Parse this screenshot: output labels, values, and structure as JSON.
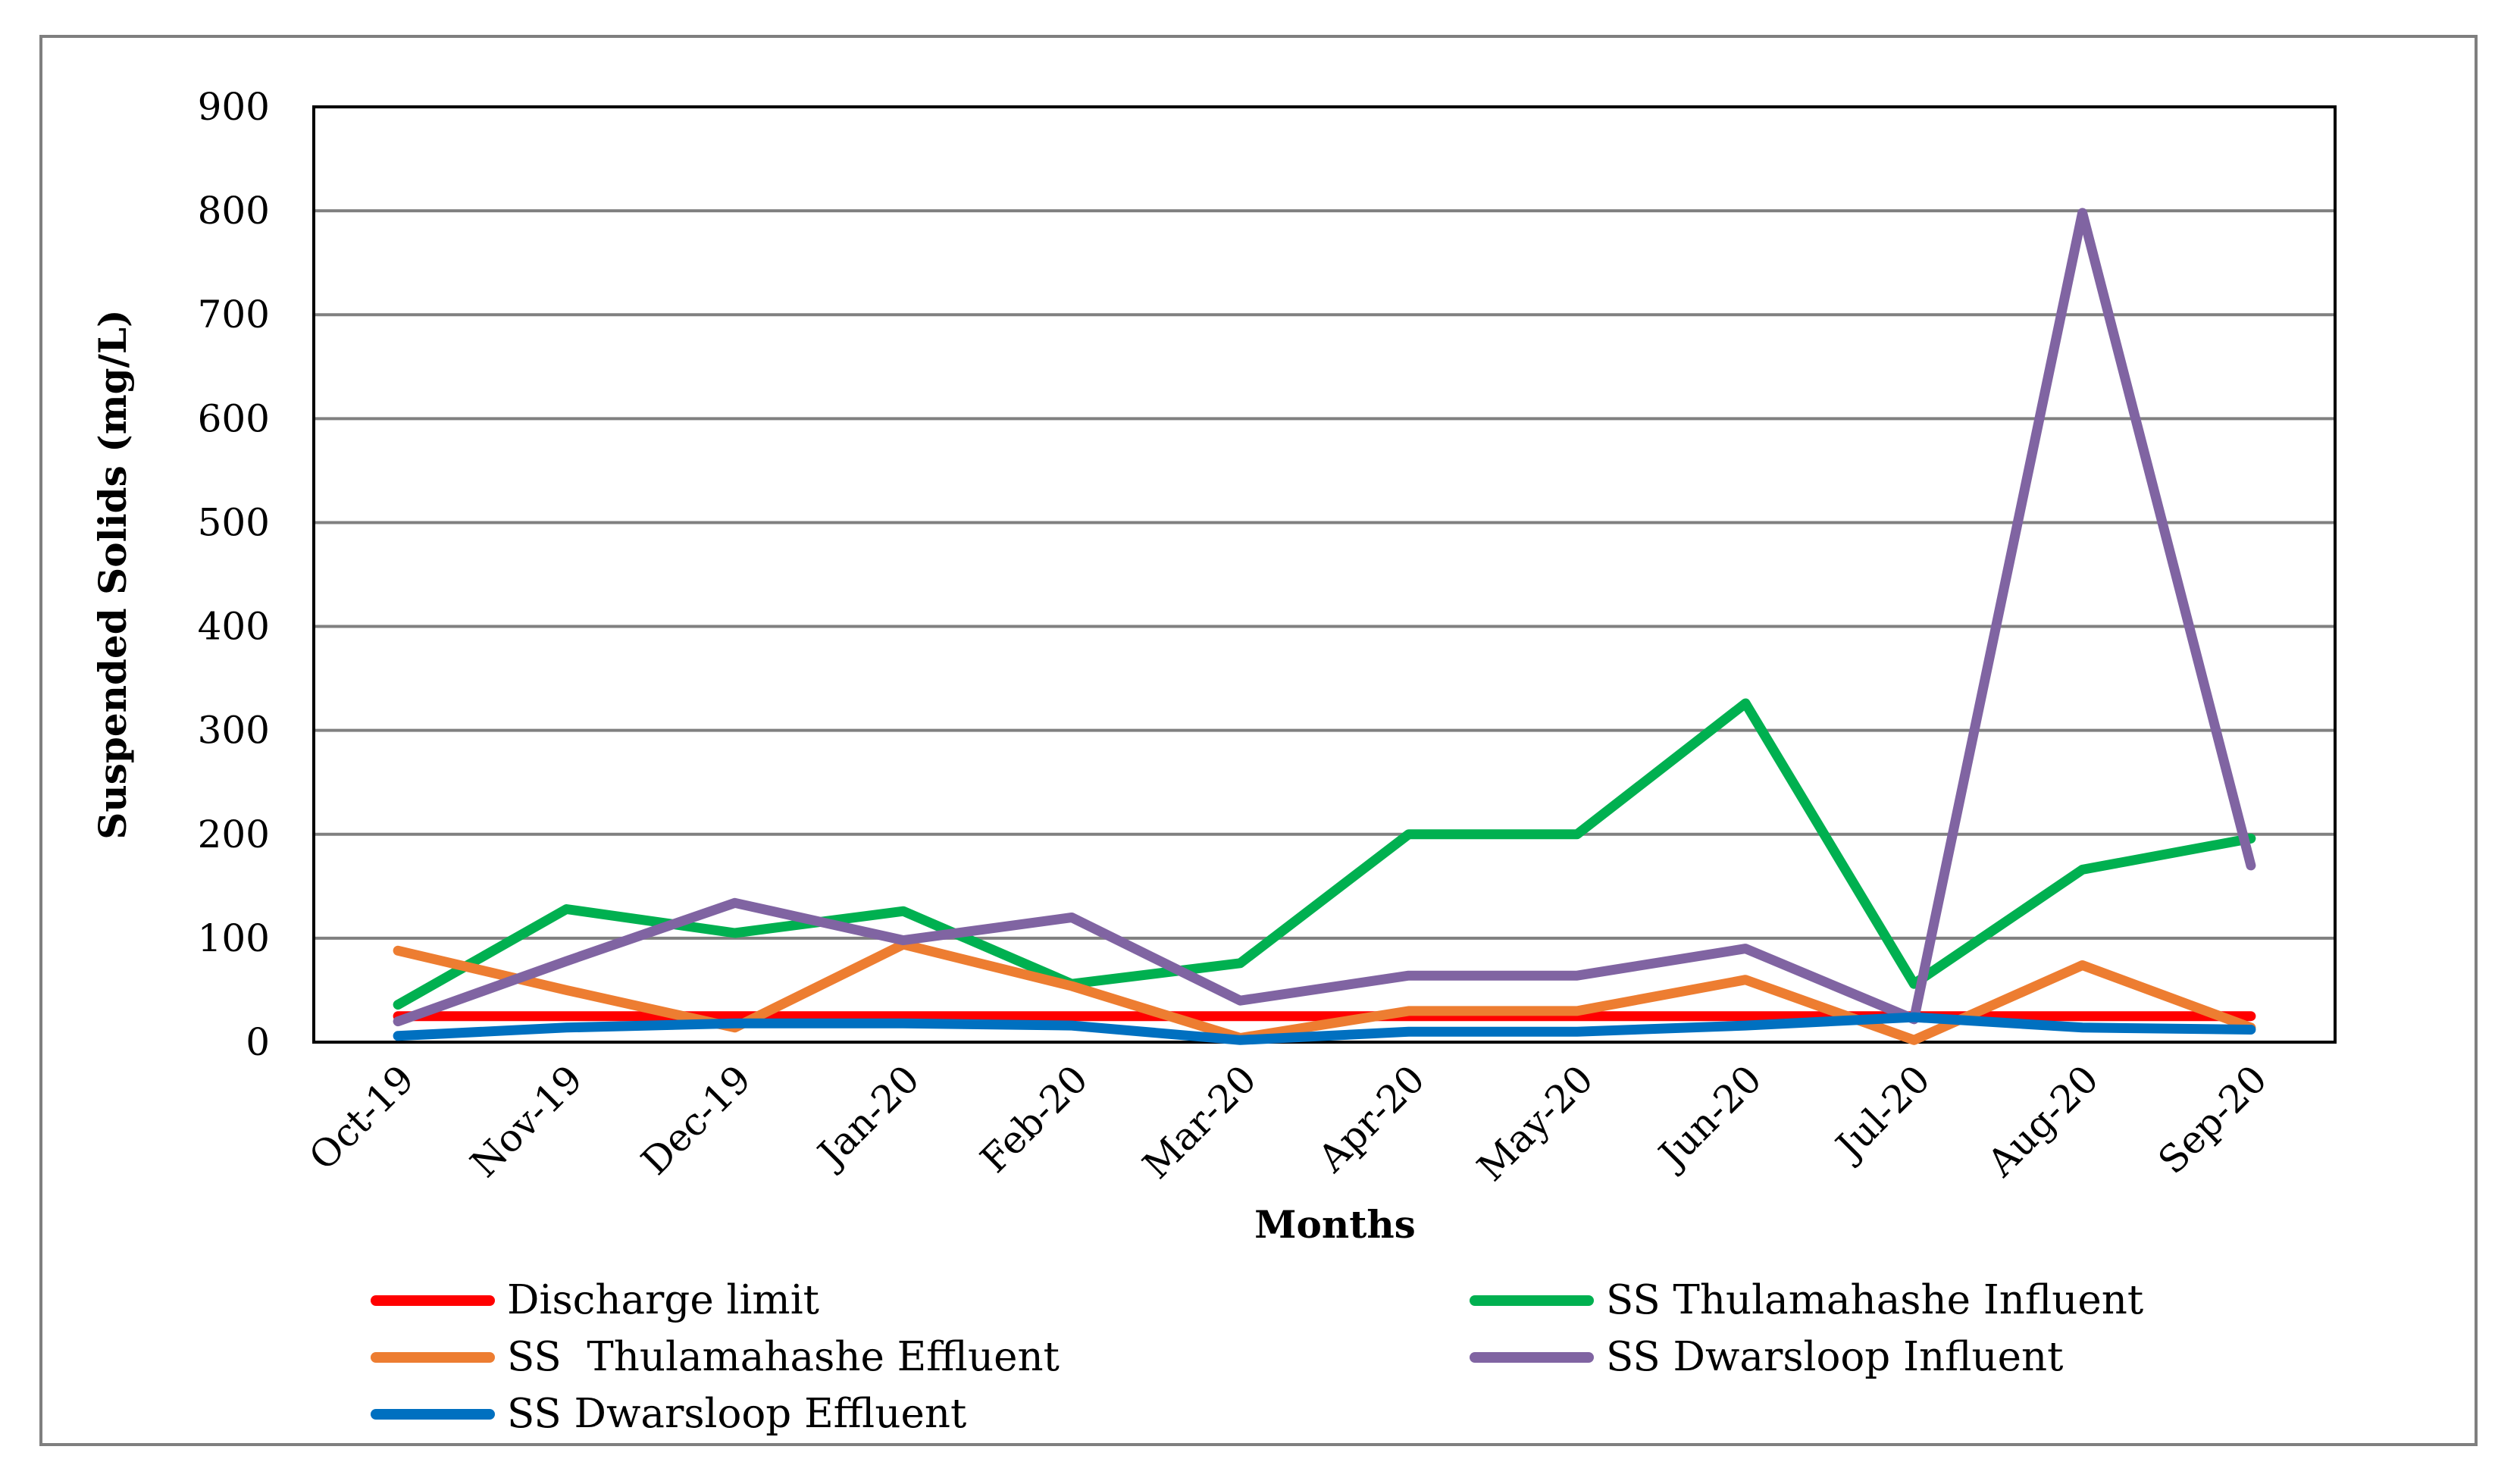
{
  "chart_data": {
    "type": "line",
    "title": "",
    "xlabel": "Months",
    "ylabel": "Suspended Solids (mg/L)",
    "ylim": [
      0,
      900
    ],
    "yticks": [
      0,
      100,
      200,
      300,
      400,
      500,
      600,
      700,
      800,
      900
    ],
    "ytick_labels": [
      "0",
      "100",
      "200",
      "300",
      "400",
      "500",
      "600",
      "700",
      "800",
      "900"
    ],
    "grid": true,
    "legend_position": "bottom",
    "categories": [
      "Oct-19",
      "Nov-19",
      "Dec-19",
      "Jan-20",
      "Feb-20",
      "Mar-20",
      "Apr-20",
      "May-20",
      "Jun-20",
      "Jul-20",
      "Aug-20",
      "Sep-20"
    ],
    "series": [
      {
        "name": "Discharge limit",
        "color": "#ff0000",
        "values": [
          25,
          25,
          25,
          25,
          25,
          25,
          25,
          25,
          25,
          25,
          25,
          25
        ]
      },
      {
        "name": "SS Thulamahashe Influent",
        "color": "#00b050",
        "values": [
          36,
          128,
          105,
          126,
          56,
          76,
          200,
          200,
          326,
          56,
          166,
          196
        ]
      },
      {
        "name": "SS  Thulamahashe Effluent",
        "color": "#ed7d31",
        "values": [
          88,
          50,
          14,
          94,
          54,
          4,
          30,
          30,
          60,
          2,
          74,
          14
        ]
      },
      {
        "name": "SS Dwarsloop Influent",
        "color": "#8064a2",
        "values": [
          20,
          78,
          134,
          98,
          120,
          40,
          64,
          64,
          90,
          22,
          798,
          170
        ]
      },
      {
        "name": "SS Dwarsloop Effluent",
        "color": "#0070c0",
        "values": [
          6,
          14,
          18,
          18,
          16,
          2,
          10,
          10,
          16,
          24,
          14,
          12
        ]
      }
    ]
  }
}
